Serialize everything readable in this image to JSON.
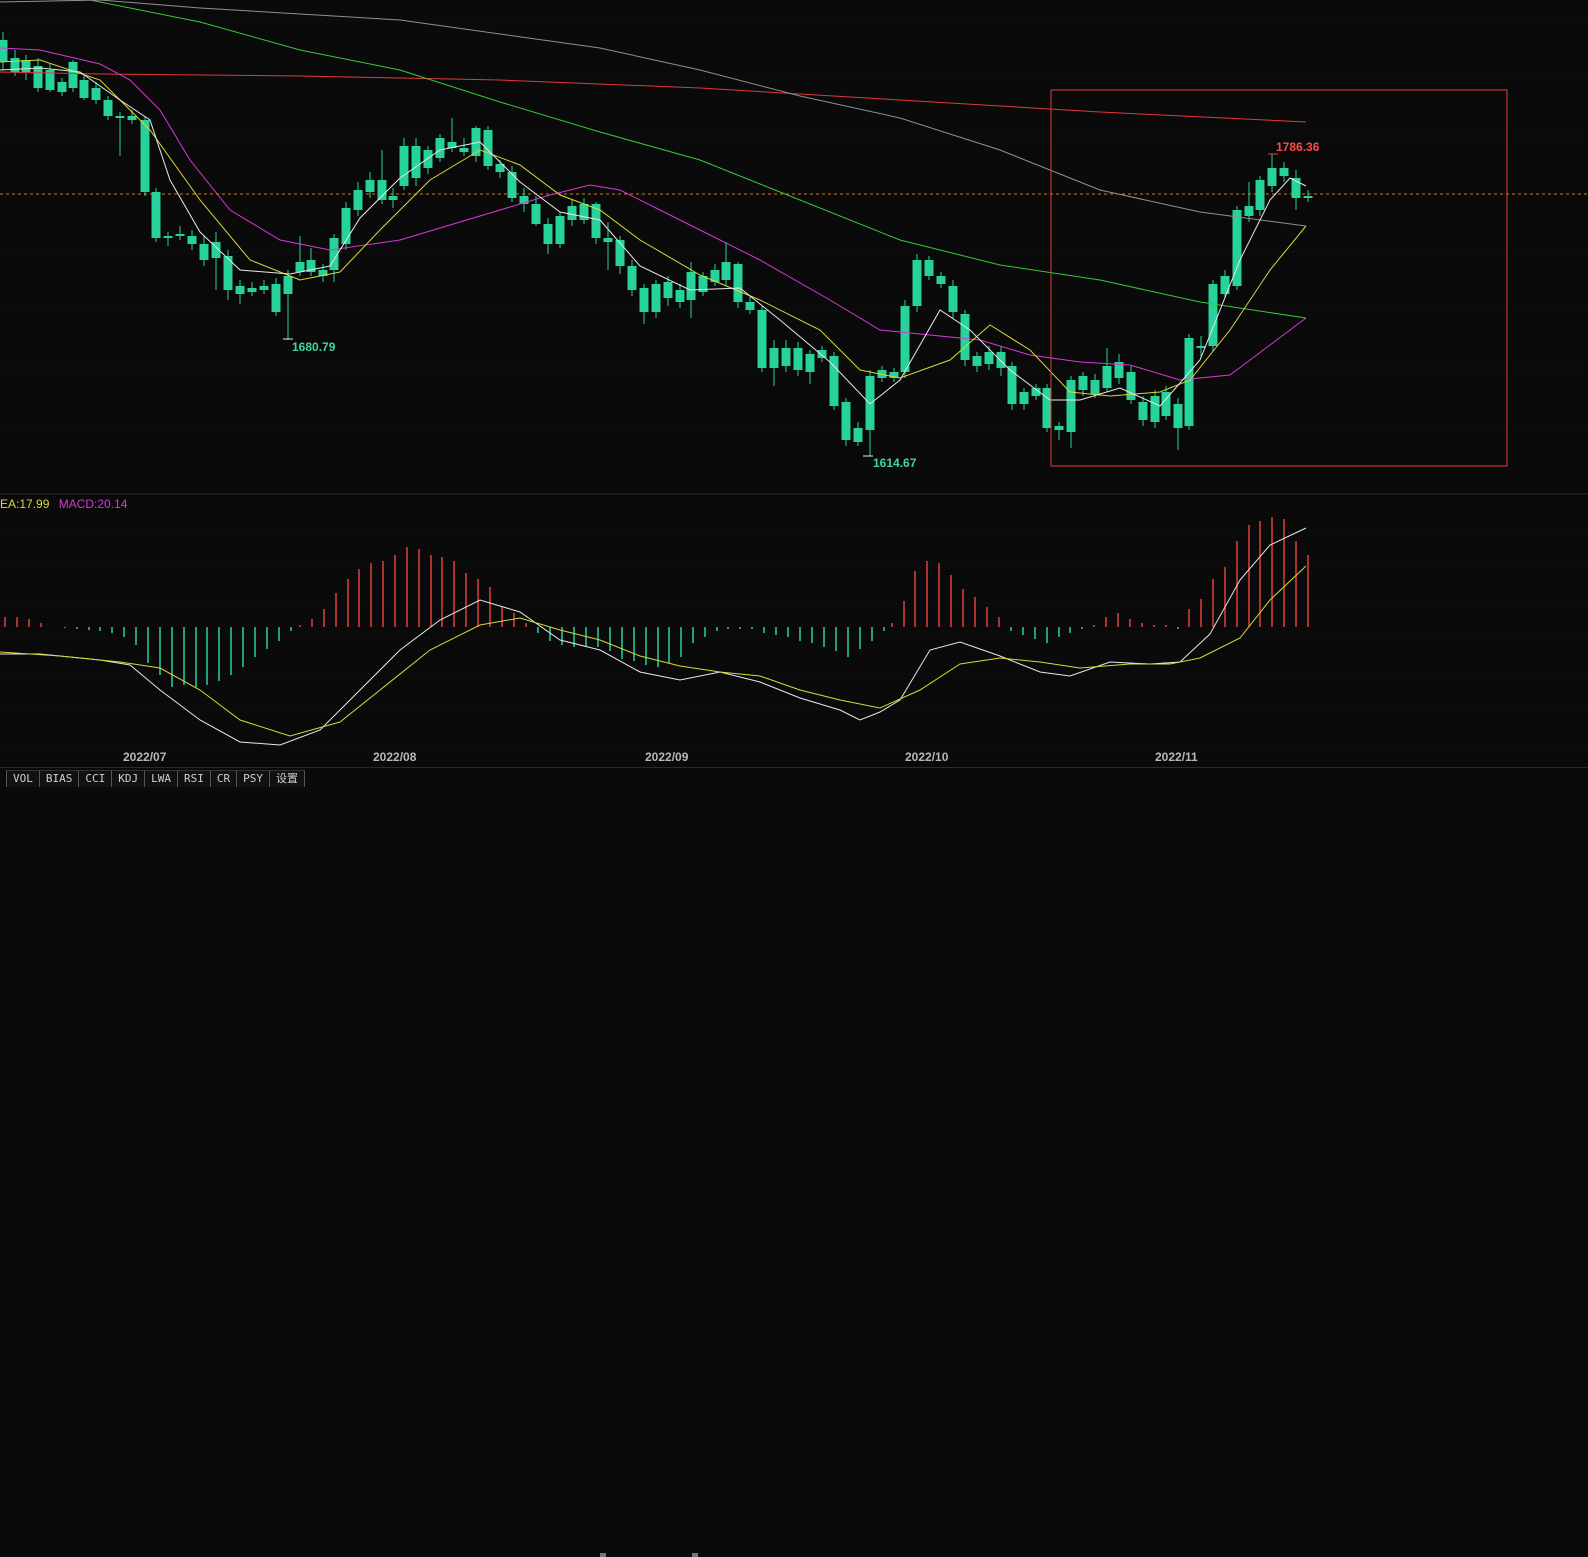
{
  "chart_data": {
    "type": "candlestick",
    "price_annotations": {
      "high": "1786.36",
      "low1": "1680.79",
      "low2": "1614.67"
    },
    "x_labels": [
      "2022/07",
      "2022/08",
      "2022/09",
      "2022/10",
      "2022/11"
    ],
    "macd_legend": {
      "dea": "EA:17.99",
      "macd": "MACD:20.14"
    },
    "colors": {
      "up": "#e0403a",
      "down": "#27d39a",
      "ma_white": "#e8e8e8",
      "ma_yellow": "#d8d838",
      "ma_magenta": "#d838d8",
      "ma_green": "#38c838",
      "ma_gray": "#909090",
      "ma_red": "#e03838",
      "box": "#e83a3a",
      "dash": "#e07a20"
    }
  },
  "indicator_tabs": [
    "VOL",
    "BIAS",
    "CCI",
    "KDJ",
    "LWA",
    "RSI",
    "CR",
    "PSY",
    "设置"
  ]
}
